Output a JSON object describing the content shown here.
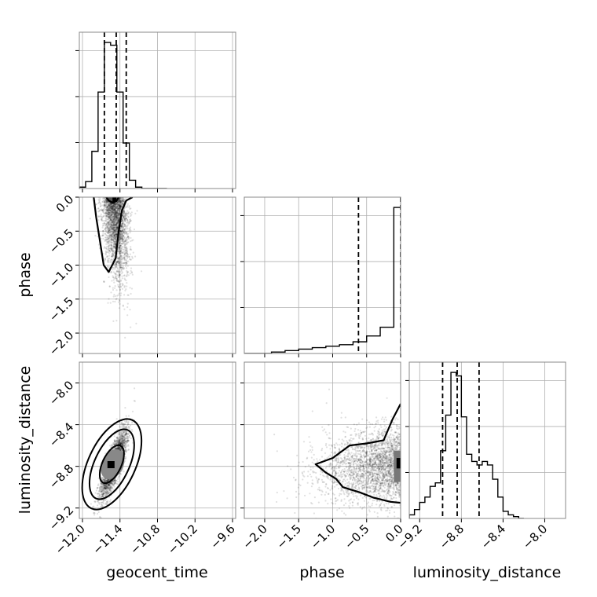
{
  "chart_data": {
    "type": "corner",
    "title": "",
    "parameters": [
      "geocent_time",
      "phase",
      "luminosity_distance"
    ],
    "axis_labels": {
      "geocent_time": "geocent_time",
      "phase": "phase",
      "luminosity_distance": "luminosity_distance"
    },
    "ranges": {
      "geocent_time": [
        -12.05,
        -9.55
      ],
      "phase": [
        -2.3,
        0.0
      ],
      "luminosity_distance": [
        -9.3,
        -7.8
      ]
    },
    "ticks": {
      "geocent_time": [
        {
          "v": -12.0,
          "label": "−12.0"
        },
        {
          "v": -11.4,
          "label": "−11.4"
        },
        {
          "v": -10.8,
          "label": "−10.8"
        },
        {
          "v": -10.2,
          "label": "−10.2"
        },
        {
          "v": -9.6,
          "label": "−9.6"
        }
      ],
      "phase": [
        {
          "v": -2.0,
          "label": "−2.0"
        },
        {
          "v": -1.5,
          "label": "−1.5"
        },
        {
          "v": -1.0,
          "label": "−1.0"
        },
        {
          "v": -0.5,
          "label": "−0.5"
        },
        {
          "v": 0.0,
          "label": "0.0"
        }
      ],
      "luminosity_distance": [
        {
          "v": -9.2,
          "label": "−9.2"
        },
        {
          "v": -8.8,
          "label": "−8.8"
        },
        {
          "v": -8.4,
          "label": "−8.4"
        },
        {
          "v": -8.0,
          "label": "−8.0"
        }
      ]
    },
    "grid": true,
    "quantiles": {
      "geocent_time": [
        -11.65,
        -11.46,
        -11.3
      ],
      "phase": [
        -0.62,
        0.0
      ],
      "luminosity_distance": [
        -8.98,
        -8.84,
        -8.63
      ]
    },
    "histograms": {
      "geocent_time": {
        "edges": [
          -12.05,
          -11.95,
          -11.85,
          -11.75,
          -11.65,
          -11.55,
          -11.45,
          -11.35,
          -11.25,
          -11.15,
          -11.05,
          -10.95,
          -10.85,
          -10.75,
          -10.65
        ],
        "counts": [
          1,
          5,
          27,
          70,
          106,
          104,
          70,
          33,
          6,
          1,
          0,
          0,
          0,
          0
        ]
      },
      "phase": {
        "edges": [
          -2.3,
          -2.1,
          -1.9,
          -1.7,
          -1.5,
          -1.3,
          -1.1,
          -0.9,
          -0.7,
          -0.5,
          -0.3,
          -0.1,
          0.0
        ],
        "counts": [
          0,
          0,
          1,
          2,
          3,
          4,
          5,
          6,
          8,
          12,
          18,
          100
        ]
      },
      "luminosity_distance": {
        "edges": [
          -9.3,
          -9.25,
          -9.2,
          -9.15,
          -9.1,
          -9.05,
          -9.0,
          -8.95,
          -8.9,
          -8.85,
          -8.8,
          -8.75,
          -8.7,
          -8.65,
          -8.6,
          -8.55,
          -8.5,
          -8.45,
          -8.4,
          -8.35,
          -8.3,
          -8.25,
          -8.2
        ],
        "counts": [
          2,
          5,
          9,
          12,
          18,
          20,
          38,
          58,
          82,
          80,
          57,
          36,
          32,
          30,
          32,
          30,
          22,
          12,
          4,
          2,
          1,
          0
        ]
      }
    },
    "scatter_samples": 2600,
    "contours": {
      "geocent_time_vs_phase": {
        "outer": [
          [
            -11.82,
            0.0
          ],
          [
            -11.78,
            -0.3
          ],
          [
            -11.72,
            -0.65
          ],
          [
            -11.66,
            -1.0
          ],
          [
            -11.58,
            -1.1
          ],
          [
            -11.47,
            -0.9
          ],
          [
            -11.42,
            -0.5
          ],
          [
            -11.37,
            -0.2
          ],
          [
            -11.3,
            -0.05
          ],
          [
            -11.2,
            0.0
          ]
        ],
        "inner": [
          [
            -11.62,
            0.0
          ],
          [
            -11.58,
            -0.05
          ],
          [
            -11.52,
            -0.08
          ],
          [
            -11.46,
            -0.06
          ],
          [
            -11.42,
            0.0
          ]
        ]
      },
      "phase_vs_luminosity_distance": {
        "outer": [
          [
            0.0,
            -8.2
          ],
          [
            -0.12,
            -8.35
          ],
          [
            -0.25,
            -8.55
          ],
          [
            -0.5,
            -8.58
          ],
          [
            -0.75,
            -8.6
          ],
          [
            -1.0,
            -8.72
          ],
          [
            -1.25,
            -8.78
          ],
          [
            -1.1,
            -8.86
          ],
          [
            -0.95,
            -8.92
          ],
          [
            -0.85,
            -9.0
          ],
          [
            -0.6,
            -9.05
          ],
          [
            -0.4,
            -9.1
          ],
          [
            -0.15,
            -9.14
          ],
          [
            0.0,
            -9.15
          ]
        ]
      }
    }
  }
}
